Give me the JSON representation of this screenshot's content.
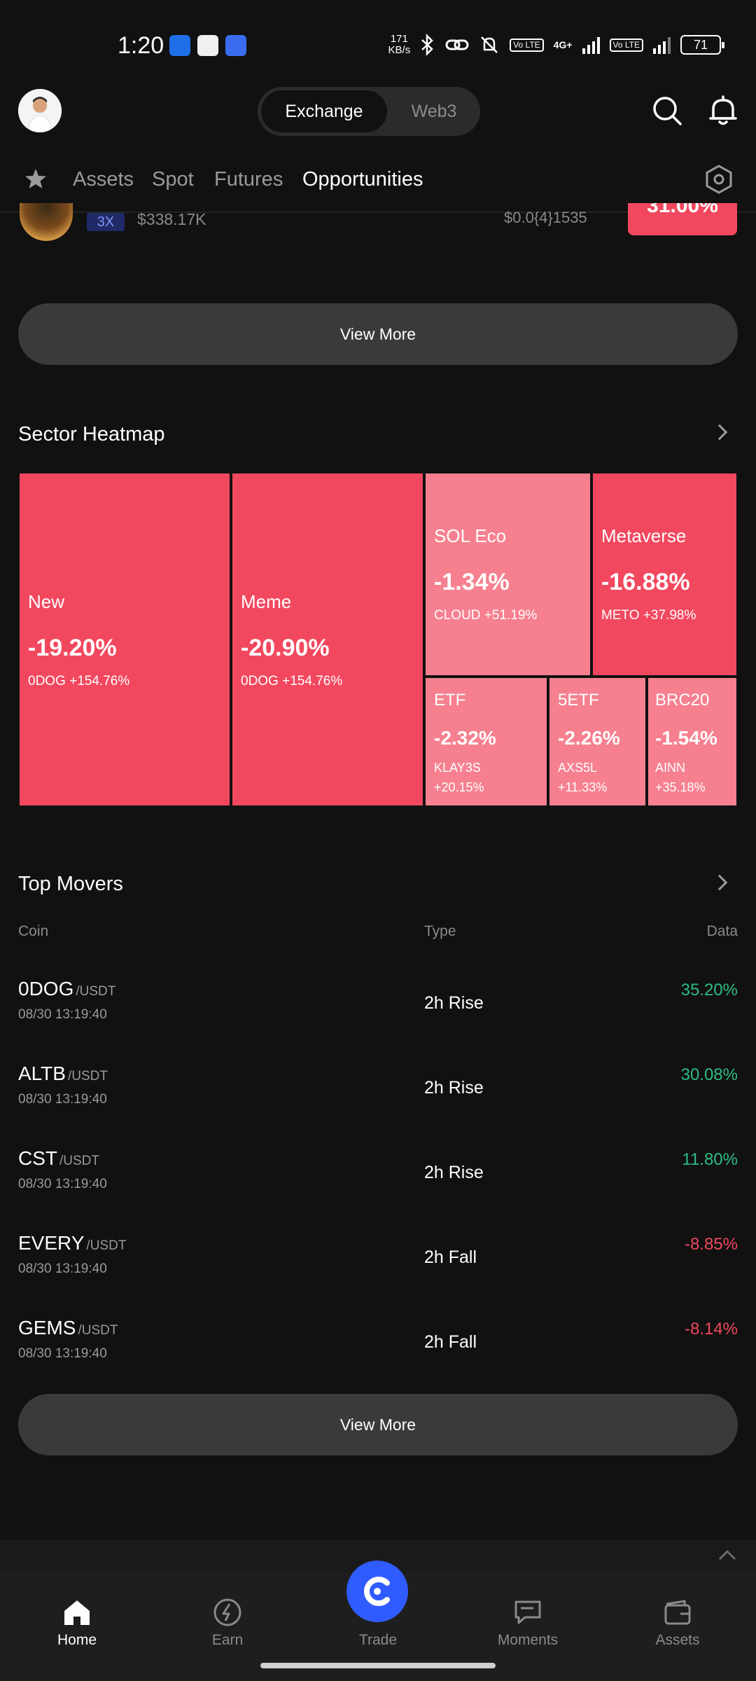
{
  "status_bar": {
    "time": "1:20",
    "speed_value": "171",
    "speed_unit": "KB/s",
    "net_label": "4G+",
    "volte_label": "Vo LTE",
    "battery": "71"
  },
  "header": {
    "segments": [
      "Exchange",
      "Web3"
    ]
  },
  "tabs": [
    "Assets",
    "Spot",
    "Futures",
    "Opportunities"
  ],
  "partial_row": {
    "leverage": "3X",
    "volume": "$338.17K",
    "price": "$0.0{4}1535",
    "change": "31.00%"
  },
  "view_more_label": "View More",
  "sector_heatmap": {
    "title": "Sector Heatmap",
    "tiles": [
      {
        "name": "New",
        "change": "-19.20%",
        "top": "0DOG +154.76%"
      },
      {
        "name": "Meme",
        "change": "-20.90%",
        "top": "0DOG +154.76%"
      },
      {
        "name": "SOL Eco",
        "change": "-1.34%",
        "top": "CLOUD +51.19%"
      },
      {
        "name": "Metaverse",
        "change": "-16.88%",
        "top": "METO +37.98%"
      },
      {
        "name": "ETF",
        "change": "-2.32%",
        "top_coin": "KLAY3S",
        "top_change": "+20.15%"
      },
      {
        "name": "5ETF",
        "change": "-2.26%",
        "top_coin": "AXS5L",
        "top_change": "+11.33%"
      },
      {
        "name": "BRC20",
        "change": "-1.54%",
        "top_coin": "AINN",
        "top_change": "+35.18%"
      }
    ]
  },
  "top_movers": {
    "title": "Top Movers",
    "columns": [
      "Coin",
      "Type",
      "Data"
    ],
    "rows": [
      {
        "coin": "0DOG",
        "quote": "/USDT",
        "time": "08/30 13:19:40",
        "type": "2h Rise",
        "value": "35.20%",
        "direction": "rise"
      },
      {
        "coin": "ALTB",
        "quote": "/USDT",
        "time": "08/30 13:19:40",
        "type": "2h Rise",
        "value": "30.08%",
        "direction": "rise"
      },
      {
        "coin": "CST",
        "quote": "/USDT",
        "time": "08/30 13:19:40",
        "type": "2h Rise",
        "value": "11.80%",
        "direction": "rise"
      },
      {
        "coin": "EVERY",
        "quote": "/USDT",
        "time": "08/30 13:19:40",
        "type": "2h Fall",
        "value": "-8.85%",
        "direction": "fall"
      },
      {
        "coin": "GEMS",
        "quote": "/USDT",
        "time": "08/30 13:19:40",
        "type": "2h Fall",
        "value": "-8.14%",
        "direction": "fall"
      }
    ]
  },
  "bottom_nav": [
    "Home",
    "Earn",
    "Trade",
    "Moments",
    "Assets"
  ],
  "colors": {
    "rise": "#2ebd85",
    "fall": "#f2485f",
    "heatmap_strong": "#f2485f",
    "heatmap_light": "#f6808f",
    "accent": "#2f5bff"
  },
  "icons": [
    "star-icon",
    "settings-hex-icon",
    "search-icon",
    "bell-icon",
    "home-icon",
    "earn-icon",
    "trade-icon",
    "moments-icon",
    "wallet-icon",
    "chevron-right-icon",
    "chevron-up-icon"
  ]
}
